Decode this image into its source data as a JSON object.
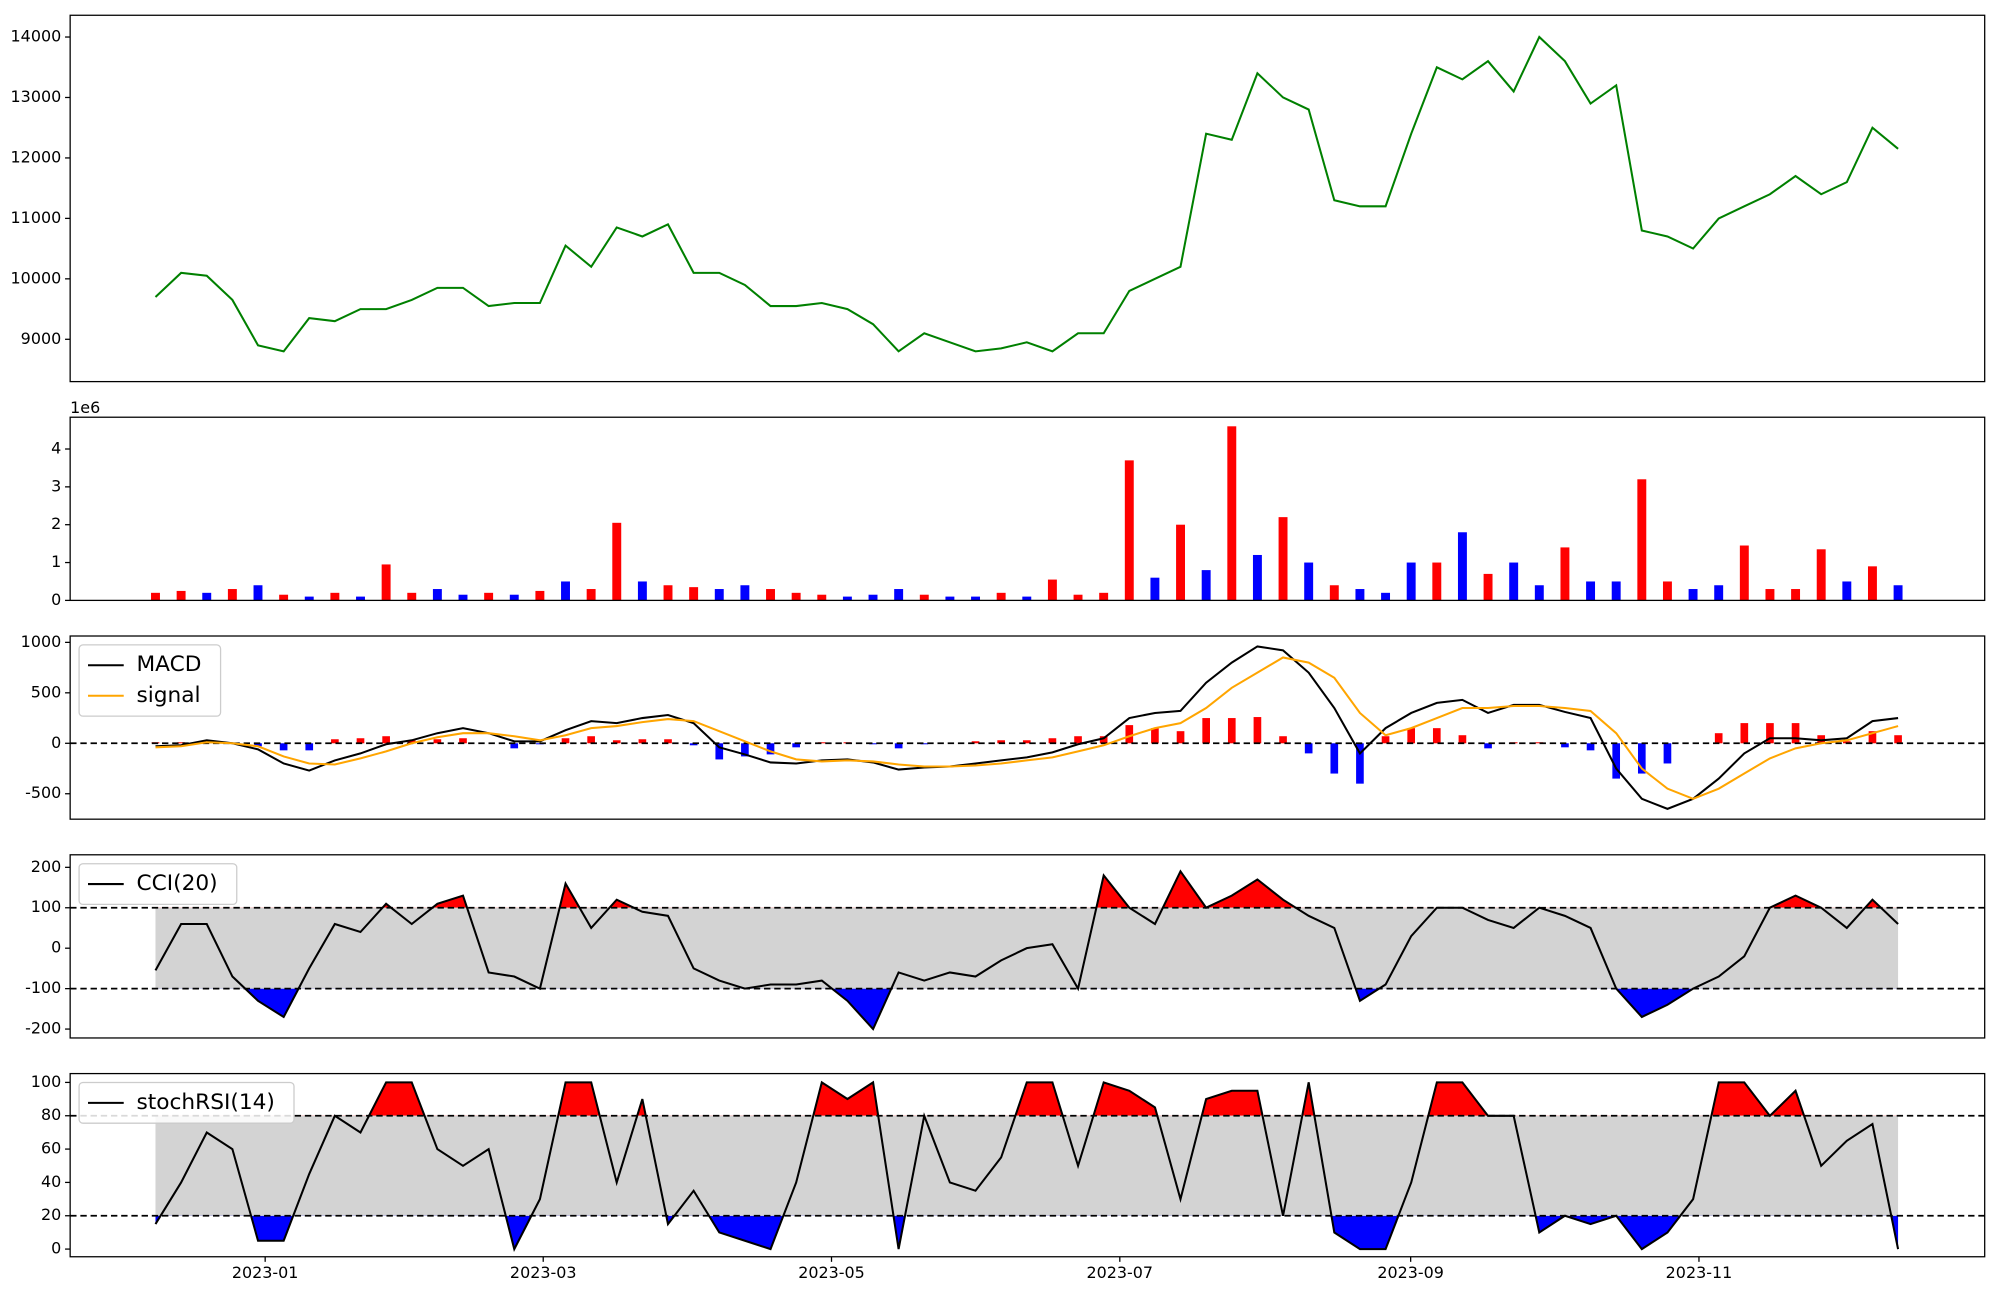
{
  "chart_data": [
    {
      "type": "line",
      "xlim": [
        -3.33,
        71.38
      ],
      "ylim": [
        8300,
        14360
      ],
      "yticks": [
        9000,
        10000,
        11000,
        12000,
        13000,
        14000
      ],
      "series": [
        {
          "color": "green",
          "values": [
            9700,
            10100,
            10050,
            9650,
            8900,
            8800,
            9350,
            9300,
            9500,
            9500,
            9650,
            9850,
            9850,
            9550,
            9600,
            9600,
            10550,
            10200,
            10850,
            10700,
            10900,
            10100,
            10100,
            9900,
            9550,
            9550,
            9600,
            9500,
            9250,
            8800,
            9100,
            8950,
            8800,
            8850,
            8950,
            8800,
            9100,
            9100,
            9800,
            10000,
            10200,
            12400,
            12300,
            13400,
            13000,
            12800,
            11300,
            11200,
            11200,
            12400,
            13500,
            13300,
            13600,
            13100,
            14000,
            13600,
            12900,
            13200,
            10800,
            10700,
            10500,
            11000,
            11200,
            11400,
            11700,
            11400,
            11600,
            12500,
            12150
          ]
        }
      ]
    },
    {
      "type": "bar",
      "xlim": [
        -3.33,
        71.38
      ],
      "ylim": [
        0,
        4840000
      ],
      "offset_label": "1e6",
      "yticks": [
        0,
        {
          "value": 1000000,
          "label": "1"
        },
        {
          "value": 2000000,
          "label": "2"
        },
        {
          "value": 3000000,
          "label": "3"
        },
        {
          "value": 4000000,
          "label": "4"
        }
      ],
      "series": [
        {
          "values": [
            200000,
            250000,
            200000,
            300000,
            400000,
            150000,
            100000,
            200000,
            100000,
            950000,
            200000,
            300000,
            150000,
            200000,
            150000,
            250000,
            500000,
            300000,
            2050000,
            500000,
            400000,
            350000,
            300000,
            400000,
            300000,
            200000,
            150000,
            100000,
            150000,
            300000,
            150000,
            100000,
            100000,
            200000,
            100000,
            550000,
            150000,
            200000,
            3700000,
            600000,
            2000000,
            800000,
            4600000,
            1200000,
            2200000,
            1000000,
            400000,
            300000,
            200000,
            1000000,
            1000000,
            1800000,
            700000,
            1000000,
            400000,
            1400000,
            500000,
            500000,
            3200000,
            500000,
            300000,
            400000,
            1450000,
            300000,
            300000,
            1350000,
            500000,
            900000,
            400000
          ],
          "colors": [
            "red",
            "red",
            "blue",
            "red",
            "blue",
            "red",
            "blue",
            "red",
            "blue",
            "red",
            "red",
            "blue",
            "blue",
            "red",
            "blue",
            "red",
            "blue",
            "red",
            "red",
            "blue",
            "red",
            "red",
            "blue",
            "blue",
            "red",
            "red",
            "red",
            "blue",
            "blue",
            "blue",
            "red",
            "blue",
            "blue",
            "red",
            "blue",
            "red",
            "red",
            "red",
            "red",
            "blue",
            "red",
            "blue",
            "red",
            "blue",
            "red",
            "blue",
            "red",
            "blue",
            "blue",
            "blue",
            "red",
            "blue",
            "red",
            "blue",
            "blue",
            "red",
            "blue",
            "blue",
            "red",
            "red",
            "blue",
            "blue",
            "red",
            "red",
            "red",
            "red",
            "blue",
            "red",
            "blue"
          ]
        }
      ]
    },
    {
      "type": "line",
      "xlim": [
        -3.33,
        71.38
      ],
      "ylim": [
        -752,
        1063
      ],
      "yticks": [
        -500,
        0,
        500,
        1000
      ],
      "levels": [
        0
      ],
      "legend": "upper left",
      "series": [
        {
          "type": "bar",
          "pos_color": "red",
          "neg_color": "blue",
          "values": [
            10,
            10,
            20,
            0,
            -30,
            -70,
            -70,
            40,
            50,
            70,
            30,
            40,
            50,
            0,
            -50,
            -10,
            50,
            70,
            30,
            40,
            40,
            -20,
            -160,
            -130,
            -110,
            -40,
            10,
            10,
            -10,
            -50,
            -10,
            0,
            20,
            30,
            30,
            50,
            70,
            70,
            180,
            150,
            120,
            250,
            250,
            260,
            70,
            -100,
            -300,
            -400,
            70,
            150,
            150,
            80,
            -50,
            10,
            10,
            -40,
            -70,
            -350,
            -300,
            -200,
            0,
            100,
            200,
            200,
            200,
            80,
            20,
            120,
            80
          ]
        },
        {
          "name": "MACD",
          "color": "black",
          "values": [
            -30,
            -20,
            30,
            0,
            -60,
            -200,
            -270,
            -170,
            -100,
            -10,
            30,
            100,
            150,
            100,
            20,
            20,
            130,
            220,
            200,
            250,
            280,
            200,
            -40,
            -110,
            -190,
            -200,
            -170,
            -160,
            -190,
            -260,
            -240,
            -230,
            -200,
            -170,
            -140,
            -90,
            -10,
            50,
            250,
            300,
            320,
            600,
            800,
            960,
            920,
            700,
            350,
            -100,
            150,
            300,
            400,
            430,
            300,
            380,
            380,
            310,
            250,
            -250,
            -550,
            -650,
            -550,
            -350,
            -100,
            50,
            50,
            30,
            50,
            220,
            250
          ]
        },
        {
          "name": "signal",
          "color": "orange",
          "values": [
            -40,
            -30,
            10,
            0,
            -30,
            -130,
            -200,
            -210,
            -150,
            -80,
            0,
            60,
            100,
            100,
            70,
            30,
            80,
            150,
            170,
            210,
            240,
            220,
            120,
            20,
            -80,
            -160,
            -180,
            -170,
            -180,
            -210,
            -230,
            -230,
            -220,
            -200,
            -170,
            -140,
            -80,
            -20,
            70,
            150,
            200,
            350,
            550,
            700,
            850,
            800,
            650,
            300,
            80,
            150,
            250,
            350,
            350,
            370,
            370,
            350,
            320,
            100,
            -250,
            -450,
            -550,
            -450,
            -300,
            -150,
            -50,
            0,
            30,
            100,
            170
          ]
        }
      ]
    },
    {
      "type": "line",
      "xlim": [
        -3.33,
        71.38
      ],
      "ylim": [
        -222,
        231
      ],
      "yticks": [
        -200,
        -100,
        0,
        100,
        200
      ],
      "levels": [
        -100,
        100
      ],
      "legend": "upper left",
      "band_fill": "lightgray",
      "upper_fill": "red",
      "lower_fill": "blue",
      "series": [
        {
          "name": "CCI(20)",
          "color": "black",
          "values": [
            -55,
            60,
            60,
            -70,
            -130,
            -170,
            -50,
            60,
            40,
            110,
            60,
            110,
            130,
            -60,
            -70,
            -100,
            160,
            50,
            120,
            90,
            80,
            -50,
            -80,
            -100,
            -90,
            -90,
            -80,
            -130,
            -200,
            -60,
            -80,
            -60,
            -70,
            -30,
            0,
            10,
            -100,
            180,
            100,
            60,
            190,
            100,
            130,
            170,
            120,
            80,
            50,
            -130,
            -90,
            30,
            100,
            100,
            70,
            50,
            100,
            80,
            50,
            -100,
            -170,
            -140,
            -100,
            -70,
            -20,
            100,
            130,
            100,
            50,
            120,
            60
          ]
        }
      ]
    },
    {
      "type": "line",
      "xlim": [
        -3.33,
        71.38
      ],
      "ylim": [
        -4.6,
        105.3
      ],
      "yticks": [
        0,
        20,
        40,
        60,
        80,
        100
      ],
      "levels": [
        20,
        80
      ],
      "legend": "upper left",
      "band_fill": "lightgray",
      "upper_fill": "red",
      "lower_fill": "blue",
      "xticks": [
        {
          "value": 4.28,
          "label": "2023-01"
        },
        {
          "value": 15.13,
          "label": "2023-03"
        },
        {
          "value": 26.38,
          "label": "2023-05"
        },
        {
          "value": 37.63,
          "label": "2023-07"
        },
        {
          "value": 48.98,
          "label": "2023-09"
        },
        {
          "value": 60.23,
          "label": "2023-11"
        }
      ],
      "series": [
        {
          "name": "stochRSI(14)",
          "color": "black",
          "values": [
            15,
            40,
            70,
            60,
            5,
            5,
            45,
            80,
            70,
            100,
            100,
            60,
            50,
            60,
            0,
            30,
            100,
            100,
            40,
            90,
            15,
            35,
            10,
            5,
            0,
            40,
            100,
            90,
            100,
            0,
            80,
            40,
            35,
            55,
            100,
            100,
            50,
            100,
            95,
            85,
            30,
            90,
            95,
            95,
            20,
            100,
            10,
            0,
            0,
            40,
            100,
            100,
            80,
            80,
            10,
            20,
            15,
            20,
            0,
            10,
            30,
            100,
            100,
            80,
            95,
            50,
            65,
            75,
            0
          ]
        }
      ]
    }
  ]
}
